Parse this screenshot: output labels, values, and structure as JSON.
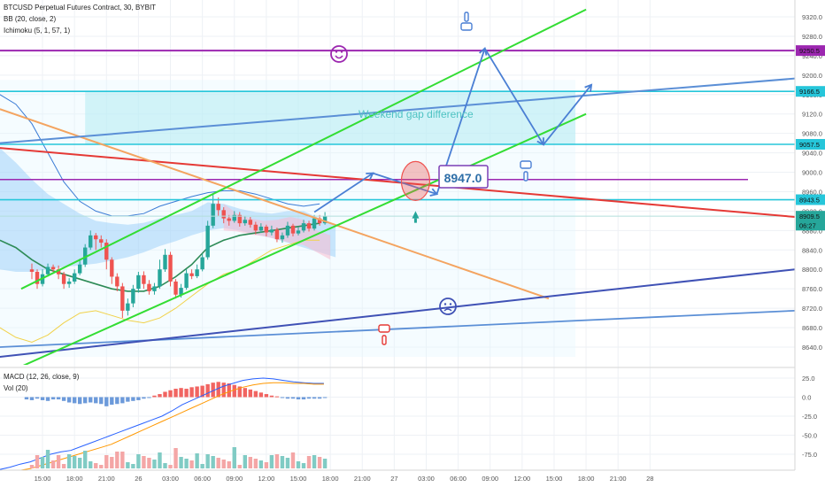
{
  "header": {
    "symbol_line": "BTCUSD Perpetual Futures Contract, 30, BYBIT",
    "bb_line": "BB (20, close, 2)",
    "ichimoku_line": "Ichimoku (5, 1, 57, 1)",
    "macd_line": "MACD (12, 26, close, 9)",
    "vol_line": "Vol (20)"
  },
  "annotations": {
    "gap_label": "Weekend gap difference",
    "price_callout": "8947.0"
  },
  "chart_data": {
    "type": "candlestick",
    "symbol": "BTCUSD Perpetual Futures Contract",
    "timeframe": "30",
    "exchange": "BYBIT",
    "price_ylim": [
      8600,
      9350
    ],
    "price_ticks": [
      "9320.0",
      "9280.0",
      "9240.0",
      "9200.0",
      "9160.0",
      "9120.0",
      "9080.0",
      "9040.0",
      "9000.0",
      "8960.0",
      "8920.0",
      "8880.0",
      "8840.0",
      "8800.0",
      "8760.0",
      "8720.0",
      "8680.0",
      "8640.0"
    ],
    "price_tags": [
      {
        "label": "9250.5",
        "value": 9250.5,
        "color": "#9c27b0"
      },
      {
        "label": "9166.5",
        "value": 9166.5,
        "color": "#26c6da"
      },
      {
        "label": "9057.5",
        "value": 9057.5,
        "color": "#26c6da"
      },
      {
        "label": "8943.5",
        "value": 8943.5,
        "color": "#26c6da"
      },
      {
        "label": "8909.5",
        "value": 8909.5,
        "color": "#26a69a"
      },
      {
        "label": "06:27",
        "value": 8891,
        "color": "#26a69a"
      }
    ],
    "x_ticks": [
      {
        "label": "15:00",
        "t": 2
      },
      {
        "label": "18:00",
        "t": 8
      },
      {
        "label": "21:00",
        "t": 14
      },
      {
        "label": "26",
        "t": 20
      },
      {
        "label": "03:00",
        "t": 26
      },
      {
        "label": "06:00",
        "t": 32
      },
      {
        "label": "09:00",
        "t": 38
      },
      {
        "label": "12:00",
        "t": 44
      },
      {
        "label": "15:00",
        "t": 50
      },
      {
        "label": "18:00",
        "t": 56
      },
      {
        "label": "21:00",
        "t": 62
      },
      {
        "label": "27",
        "t": 68
      },
      {
        "label": "03:00",
        "t": 74
      },
      {
        "label": "06:00",
        "t": 80
      },
      {
        "label": "09:00",
        "t": 86
      },
      {
        "label": "12:00",
        "t": 92
      },
      {
        "label": "15:00",
        "t": 98
      },
      {
        "label": "18:00",
        "t": 104
      },
      {
        "label": "21:00",
        "t": 110
      },
      {
        "label": "28",
        "t": 116
      }
    ],
    "candles": [
      [
        8800,
        8795,
        8812,
        8780
      ],
      [
        8795,
        8770,
        8800,
        8760
      ],
      [
        8770,
        8790,
        8800,
        8765
      ],
      [
        8790,
        8805,
        8812,
        8785
      ],
      [
        8805,
        8800,
        8810,
        8795
      ],
      [
        8800,
        8790,
        8808,
        8780
      ],
      [
        8790,
        8770,
        8795,
        8760
      ],
      [
        8770,
        8775,
        8782,
        8762
      ],
      [
        8775,
        8792,
        8800,
        8770
      ],
      [
        8792,
        8810,
        8822,
        8788
      ],
      [
        8810,
        8845,
        8852,
        8805
      ],
      [
        8845,
        8870,
        8880,
        8840
      ],
      [
        8870,
        8862,
        8875,
        8840
      ],
      [
        8862,
        8855,
        8870,
        8845
      ],
      [
        8855,
        8820,
        8862,
        8800
      ],
      [
        8820,
        8785,
        8825,
        8770
      ],
      [
        8785,
        8765,
        8792,
        8755
      ],
      [
        8765,
        8715,
        8772,
        8700
      ],
      [
        8715,
        8730,
        8740,
        8705
      ],
      [
        8730,
        8760,
        8768,
        8722
      ],
      [
        8760,
        8788,
        8795,
        8752
      ],
      [
        8788,
        8770,
        8796,
        8760
      ],
      [
        8770,
        8755,
        8778,
        8748
      ],
      [
        8755,
        8765,
        8772,
        8748
      ],
      [
        8765,
        8800,
        8820,
        8760
      ],
      [
        8800,
        8830,
        8842,
        8795
      ],
      [
        8830,
        8775,
        8836,
        8765
      ],
      [
        8775,
        8748,
        8780,
        8740
      ],
      [
        8748,
        8762,
        8770,
        8742
      ],
      [
        8762,
        8792,
        8800,
        8758
      ],
      [
        8792,
        8786,
        8800,
        8780
      ],
      [
        8786,
        8800,
        8810,
        8782
      ],
      [
        8800,
        8825,
        8832,
        8796
      ],
      [
        8825,
        8890,
        8900,
        8820
      ],
      [
        8890,
        8935,
        8955,
        8885
      ],
      [
        8935,
        8922,
        8948,
        8910
      ],
      [
        8922,
        8905,
        8928,
        8895
      ],
      [
        8905,
        8900,
        8912,
        8890
      ],
      [
        8900,
        8912,
        8920,
        8896
      ],
      [
        8912,
        8895,
        8918,
        8888
      ],
      [
        8895,
        8902,
        8910,
        8890
      ],
      [
        8902,
        8892,
        8908,
        8886
      ],
      [
        8892,
        8880,
        8898,
        8872
      ],
      [
        8880,
        8888,
        8895,
        8875
      ],
      [
        8888,
        8876,
        8892,
        8868
      ],
      [
        8876,
        8882,
        8890,
        8870
      ],
      [
        8882,
        8862,
        8886,
        8856
      ],
      [
        8862,
        8870,
        8876,
        8855
      ],
      [
        8870,
        8890,
        8898,
        8865
      ],
      [
        8890,
        8874,
        8894,
        8868
      ],
      [
        8874,
        8880,
        8888,
        8870
      ],
      [
        8880,
        8895,
        8902,
        8876
      ],
      [
        8895,
        8884,
        8900,
        8878
      ],
      [
        8884,
        8905,
        8912,
        8880
      ],
      [
        8905,
        8895,
        8912,
        8890
      ],
      [
        8895,
        8909.5,
        8918,
        8892
      ]
    ],
    "macd_ylim": [
      -100,
      40
    ],
    "macd_ticks": [
      "25.0",
      "0.0",
      "-25.0",
      "-50.0",
      "-75.0"
    ]
  },
  "colors": {
    "up": "#26a69a",
    "down": "#ef5350",
    "channel": "#33dd33",
    "purple_line": "#9c27b0",
    "cyan_line": "#26c6da",
    "red_trend": "#e53935",
    "orange_trend": "#f4a460",
    "blue_trend": "#3f51b5",
    "steel_trend": "#5b8fd6",
    "arrows": "#4a7fd4"
  }
}
